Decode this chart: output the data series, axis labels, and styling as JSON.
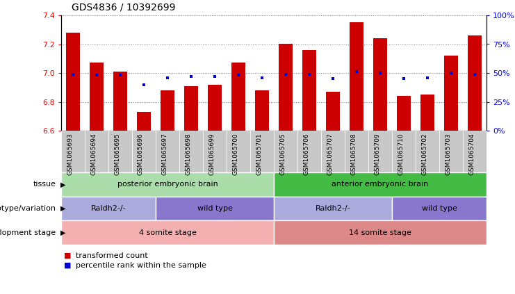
{
  "title": "GDS4836 / 10392699",
  "samples": [
    "GSM1065693",
    "GSM1065694",
    "GSM1065695",
    "GSM1065696",
    "GSM1065697",
    "GSM1065698",
    "GSM1065699",
    "GSM1065700",
    "GSM1065701",
    "GSM1065705",
    "GSM1065706",
    "GSM1065707",
    "GSM1065708",
    "GSM1065709",
    "GSM1065710",
    "GSM1065702",
    "GSM1065703",
    "GSM1065704"
  ],
  "transformed_count": [
    7.28,
    7.07,
    7.01,
    6.73,
    6.88,
    6.91,
    6.92,
    7.07,
    6.88,
    7.2,
    7.16,
    6.87,
    7.35,
    7.24,
    6.84,
    6.85,
    7.12,
    7.26
  ],
  "percentile_rank": [
    49,
    48,
    48,
    40,
    46,
    47,
    47,
    48,
    46,
    49,
    49,
    45,
    51,
    50,
    45,
    46,
    50,
    49
  ],
  "ymin": 6.6,
  "ymax": 7.4,
  "bar_color": "#cc0000",
  "dot_color": "#0000cc",
  "tissue_groups": [
    {
      "label": "posterior embryonic brain",
      "start": 0,
      "end": 9,
      "color": "#aaddaa"
    },
    {
      "label": "anterior embryonic brain",
      "start": 9,
      "end": 18,
      "color": "#44bb44"
    }
  ],
  "genotype_groups": [
    {
      "label": "Raldh2-/-",
      "start": 0,
      "end": 4,
      "color": "#aaaadd"
    },
    {
      "label": "wild type",
      "start": 4,
      "end": 9,
      "color": "#8877cc"
    },
    {
      "label": "Raldh2-/-",
      "start": 9,
      "end": 14,
      "color": "#aaaadd"
    },
    {
      "label": "wild type",
      "start": 14,
      "end": 18,
      "color": "#8877cc"
    }
  ],
  "dev_stage_groups": [
    {
      "label": "4 somite stage",
      "start": 0,
      "end": 9,
      "color": "#f4b0b0"
    },
    {
      "label": "14 somite stage",
      "start": 9,
      "end": 18,
      "color": "#dd8888"
    }
  ],
  "row_labels": [
    "tissue",
    "genotype/variation",
    "development stage"
  ],
  "xtick_bg": "#c8c8c8"
}
